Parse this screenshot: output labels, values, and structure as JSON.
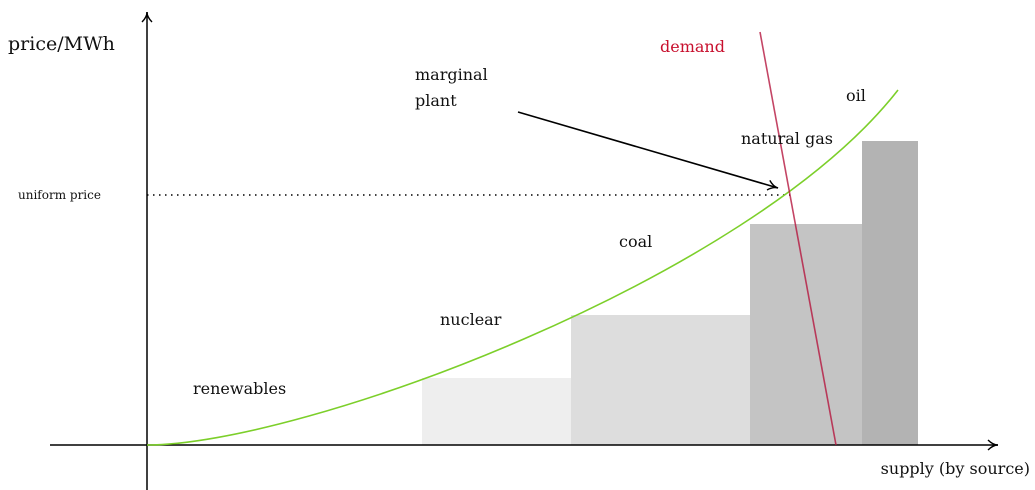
{
  "axes": {
    "y_label": "price/MWh",
    "x_label": "supply (by source)"
  },
  "labels": {
    "uniform_price": "uniform price",
    "demand": "demand",
    "marginal_plant": [
      "marginal",
      "plant"
    ],
    "sources": [
      "renewables",
      "nuclear",
      "coal",
      "natural gas",
      "oil"
    ]
  }
}
